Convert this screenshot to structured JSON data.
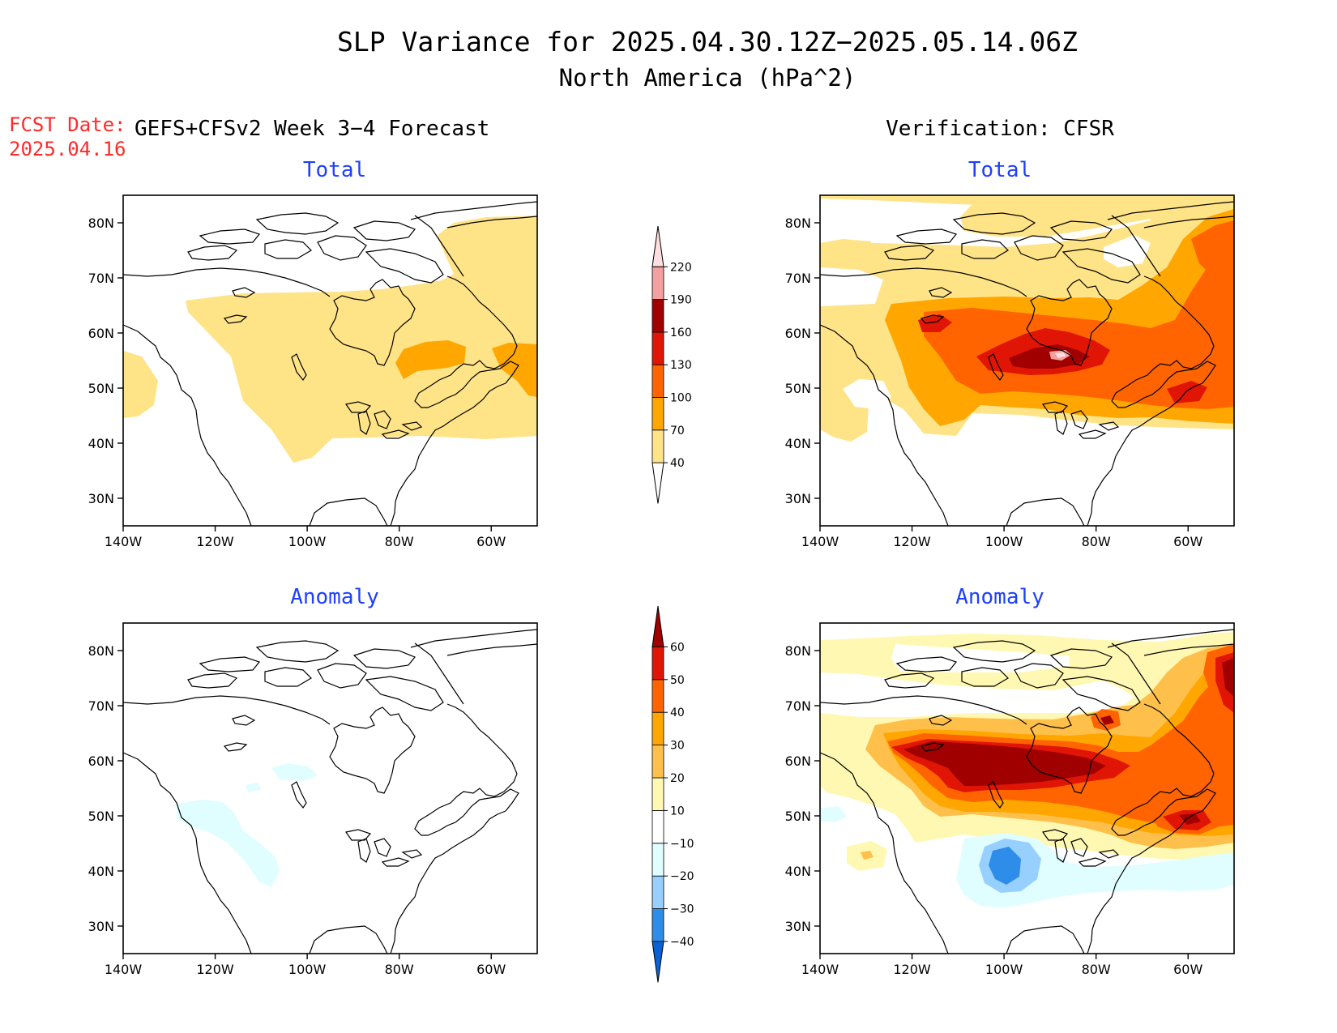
{
  "title": "SLP Variance for 2025.04.30.12Z−2025.05.14.06Z",
  "subtitle": "North America (hPa^2)",
  "fcst_date": {
    "label": "FCST Date:",
    "value": "2025.04.16"
  },
  "left_header": "GEFS+CFSv2 Week 3−4 Forecast",
  "right_header": "Verification: CFSR",
  "panel_titles": {
    "total": "Total",
    "anomaly": "Anomaly"
  },
  "axes": {
    "x_ticks": [
      "140W",
      "120W",
      "100W",
      "80W",
      "60W"
    ],
    "x_values": [
      -140,
      -120,
      -100,
      -80,
      -60
    ],
    "y_ticks": [
      "30N",
      "40N",
      "50N",
      "60N",
      "70N",
      "80N"
    ],
    "y_values": [
      30,
      40,
      50,
      60,
      70,
      80
    ],
    "lon_range": [
      -140,
      -50
    ],
    "lat_range": [
      25,
      85
    ]
  },
  "colorbars": {
    "total": {
      "labels": [
        "40",
        "70",
        "100",
        "130",
        "160",
        "190",
        "220"
      ],
      "colors": [
        "#ffffff",
        "#fee387",
        "#ffa600",
        "#ff6400",
        "#e01506",
        "#a10000",
        "#f4a0a0",
        "#fedede"
      ]
    },
    "anomaly": {
      "labels": [
        "−40",
        "−30",
        "−20",
        "−10",
        "10",
        "20",
        "30",
        "40",
        "50",
        "60"
      ],
      "colors": [
        "#0b62d6",
        "#2d8de8",
        "#97d0ff",
        "#e0fdff",
        "#ffffff",
        "#fff8b2",
        "#fec04a",
        "#ffa600",
        "#ff6400",
        "#e01506",
        "#a10000"
      ]
    }
  },
  "colors": {
    "title_blue": "#1d3fff",
    "fcst_red": "#ff2a2a",
    "coast": "#000000"
  }
}
